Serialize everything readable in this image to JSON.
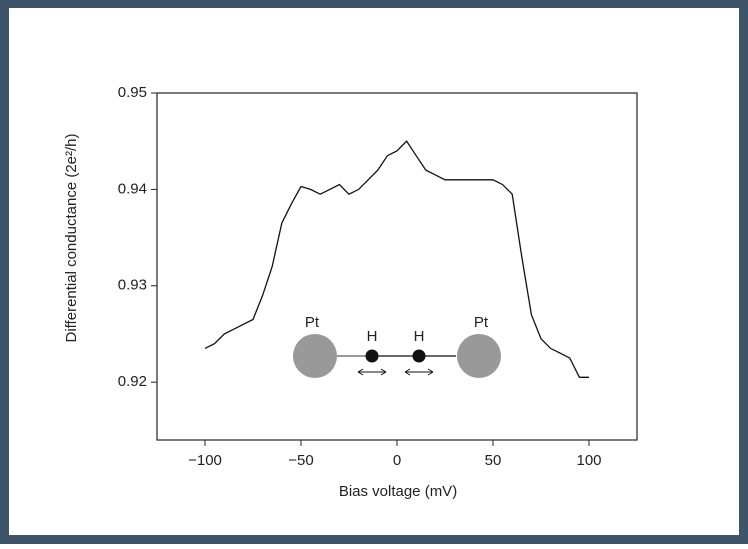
{
  "chart_data": {
    "type": "line",
    "x_label": "Bias voltage (mV)",
    "y_label": "Differential conductance (2e²/h)",
    "x": [
      -100,
      -95,
      -90,
      -85,
      -80,
      -75,
      -70,
      -65,
      -60,
      -55,
      -50,
      -45,
      -40,
      -35,
      -30,
      -25,
      -20,
      -15,
      -10,
      -5,
      0,
      5,
      10,
      15,
      20,
      25,
      30,
      35,
      40,
      45,
      50,
      55,
      60,
      65,
      70,
      75,
      80,
      85,
      90,
      95,
      100
    ],
    "series": [
      {
        "color": "#111111",
        "values": [
          0.9235,
          0.924,
          0.925,
          0.9255,
          0.926,
          0.9265,
          0.929,
          0.932,
          0.9365,
          0.9385,
          0.9403,
          0.94,
          0.9395,
          0.94,
          0.9405,
          0.9395,
          0.94,
          0.941,
          0.942,
          0.9435,
          0.944,
          0.945,
          0.9435,
          0.942,
          0.9415,
          0.941,
          0.941,
          0.941,
          0.941,
          0.941,
          0.941,
          0.9405,
          0.9395,
          0.933,
          0.927,
          0.9245,
          0.9235,
          0.923,
          0.9225,
          0.9205,
          0.9205
        ]
      }
    ],
    "xlim": [
      -125,
      125
    ],
    "ylim": [
      0.914,
      0.95
    ],
    "xticks": [
      {
        "value": -100,
        "label": "−100"
      },
      {
        "value": -50,
        "label": "−50"
      },
      0,
      50,
      100
    ],
    "yticks": [
      0.92,
      0.93,
      0.94,
      0.95
    ],
    "annotations": [
      "Pt",
      "H",
      "H",
      "Pt"
    ]
  }
}
